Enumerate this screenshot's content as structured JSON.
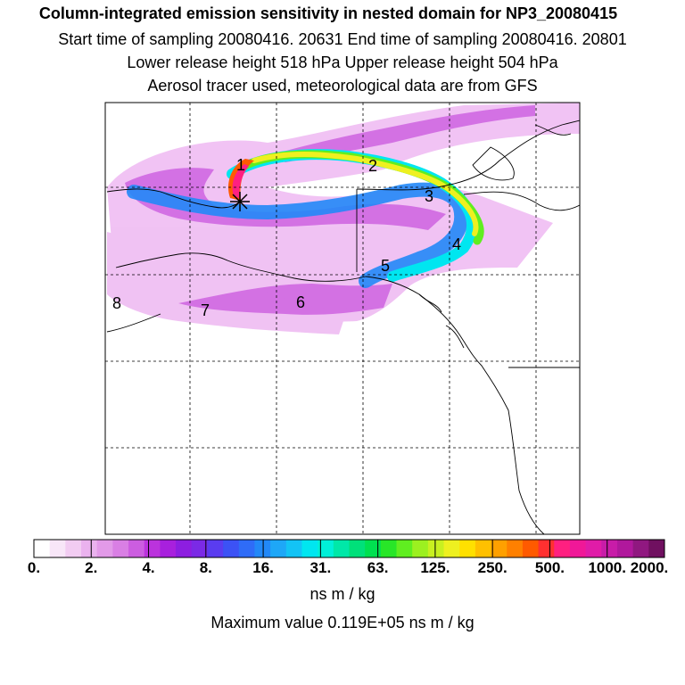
{
  "header": {
    "title": "Column-integrated emission sensitivity in nested domain for NP3_20080415",
    "line2": "Start time of sampling 20080416. 20631     End time of sampling 20080416. 20801",
    "line3": "Lower release height  518 hPa       Upper release height  504 hPa",
    "line4": "Aerosol tracer used, meteorological data are from GFS"
  },
  "map": {
    "markers": [
      "1",
      "2",
      "3",
      "4",
      "5",
      "6",
      "7",
      "8"
    ]
  },
  "colorbar": {
    "ticks": [
      "0.",
      "2.",
      "4.",
      "8.",
      "16.",
      "31.",
      "63.",
      "125.",
      "250.",
      "500.",
      "1000.",
      "2000."
    ],
    "units": "ns m / kg",
    "max_value": "Maximum value  0.119E+05 ns m / kg",
    "colors": [
      "#ffffff",
      "#f8e6f8",
      "#f2ccf2",
      "#eab2ee",
      "#e29ae8",
      "#d97fe4",
      "#cc5de0",
      "#bb33dd",
      "#a820dd",
      "#8d1ee0",
      "#7b2ae6",
      "#5a3cf0",
      "#3c52f5",
      "#2f6cf7",
      "#2288f7",
      "#1ea7f7",
      "#13c3f5",
      "#00e6f0",
      "#00f0d8",
      "#00e8a8",
      "#00e07a",
      "#00e050",
      "#28e628",
      "#60ee20",
      "#9cf020",
      "#c8f020",
      "#eef020",
      "#ffe000",
      "#ffc000",
      "#ffa000",
      "#ff8000",
      "#ff5a00",
      "#ff3030",
      "#ff2080",
      "#f01898",
      "#e01ca8",
      "#c81ca8",
      "#b0189c",
      "#901880",
      "#701060"
    ]
  }
}
